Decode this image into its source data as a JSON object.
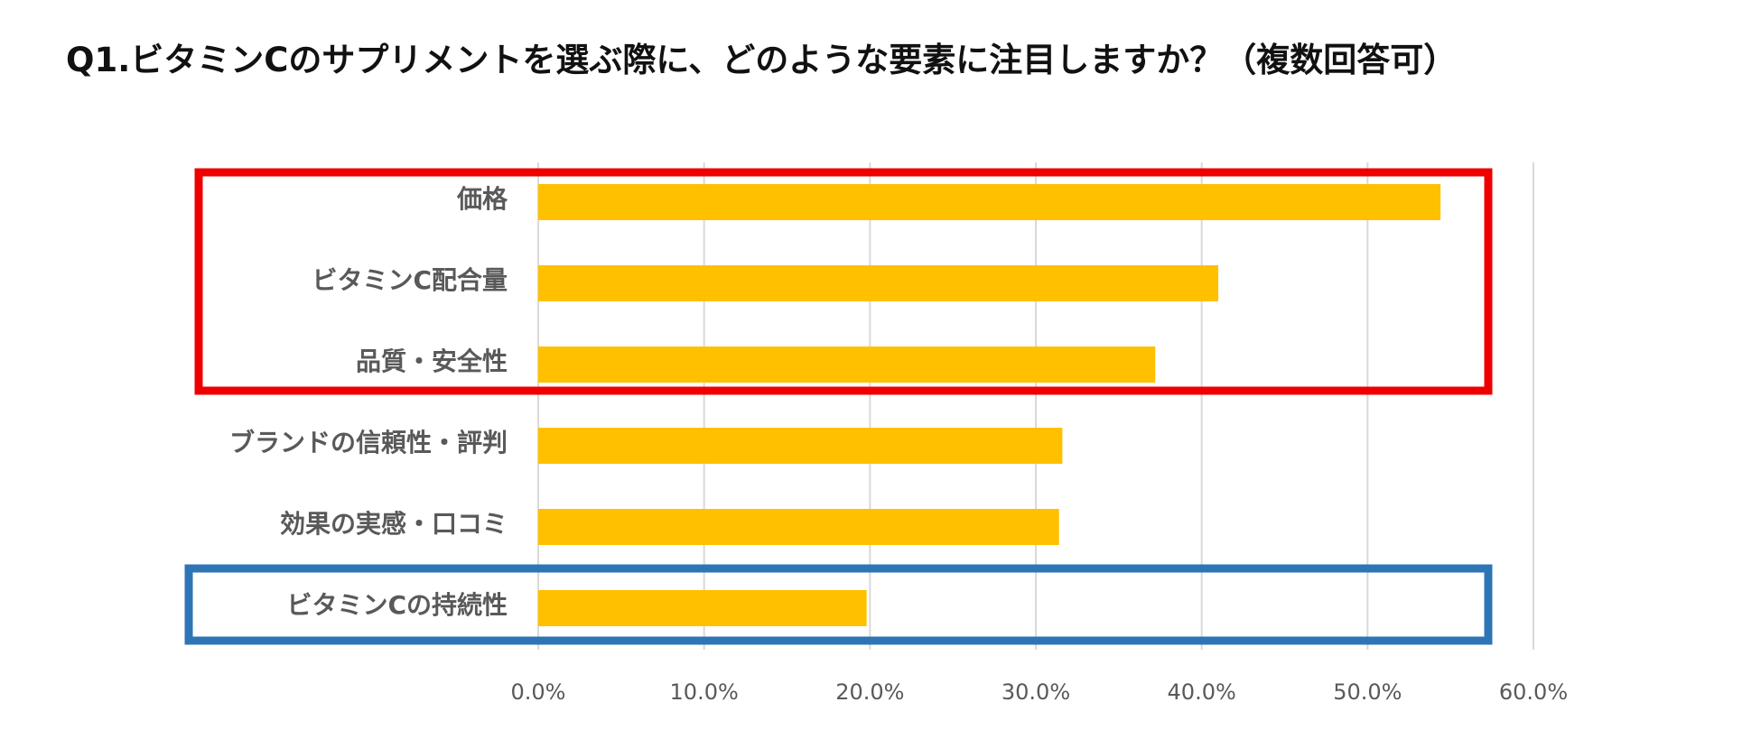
{
  "title": "Q1.ビタミンCのサプリメントを選ぶ際に、どのような要素に注目しますか？（複数回答可）",
  "colors": {
    "bar": "#FFC000",
    "grid": "#D9D9D9",
    "highlight_red": "#EE0000",
    "highlight_blue": "#2E75B6",
    "label": "#595959"
  },
  "chart_data": {
    "type": "bar",
    "orientation": "horizontal",
    "title": "Q1.ビタミンCのサプリメントを選ぶ際に、どのような要素に注目しますか？（複数回答可）",
    "categories": [
      "価格",
      "ビタミンC配合量",
      "品質・安全性",
      "ブランドの信頼性・評判",
      "効果の実感・口コミ",
      "ビタミンCの持続性"
    ],
    "values": [
      54.4,
      41.0,
      37.2,
      31.6,
      31.4,
      19.8
    ],
    "xlim": [
      0,
      60
    ],
    "xticks": [
      0,
      10,
      20,
      30,
      40,
      50,
      60
    ],
    "tick_labels": [
      "0.0%",
      "10.0%",
      "20.0%",
      "30.0%",
      "40.0%",
      "50.0%",
      "60.0%"
    ],
    "xlabel": "",
    "ylabel": "",
    "grid": true,
    "highlights": [
      {
        "name": "red",
        "categories": [
          "価格",
          "ビタミンC配合量",
          "品質・安全性"
        ]
      },
      {
        "name": "blue",
        "categories": [
          "ビタミンCの持続性"
        ]
      }
    ]
  }
}
